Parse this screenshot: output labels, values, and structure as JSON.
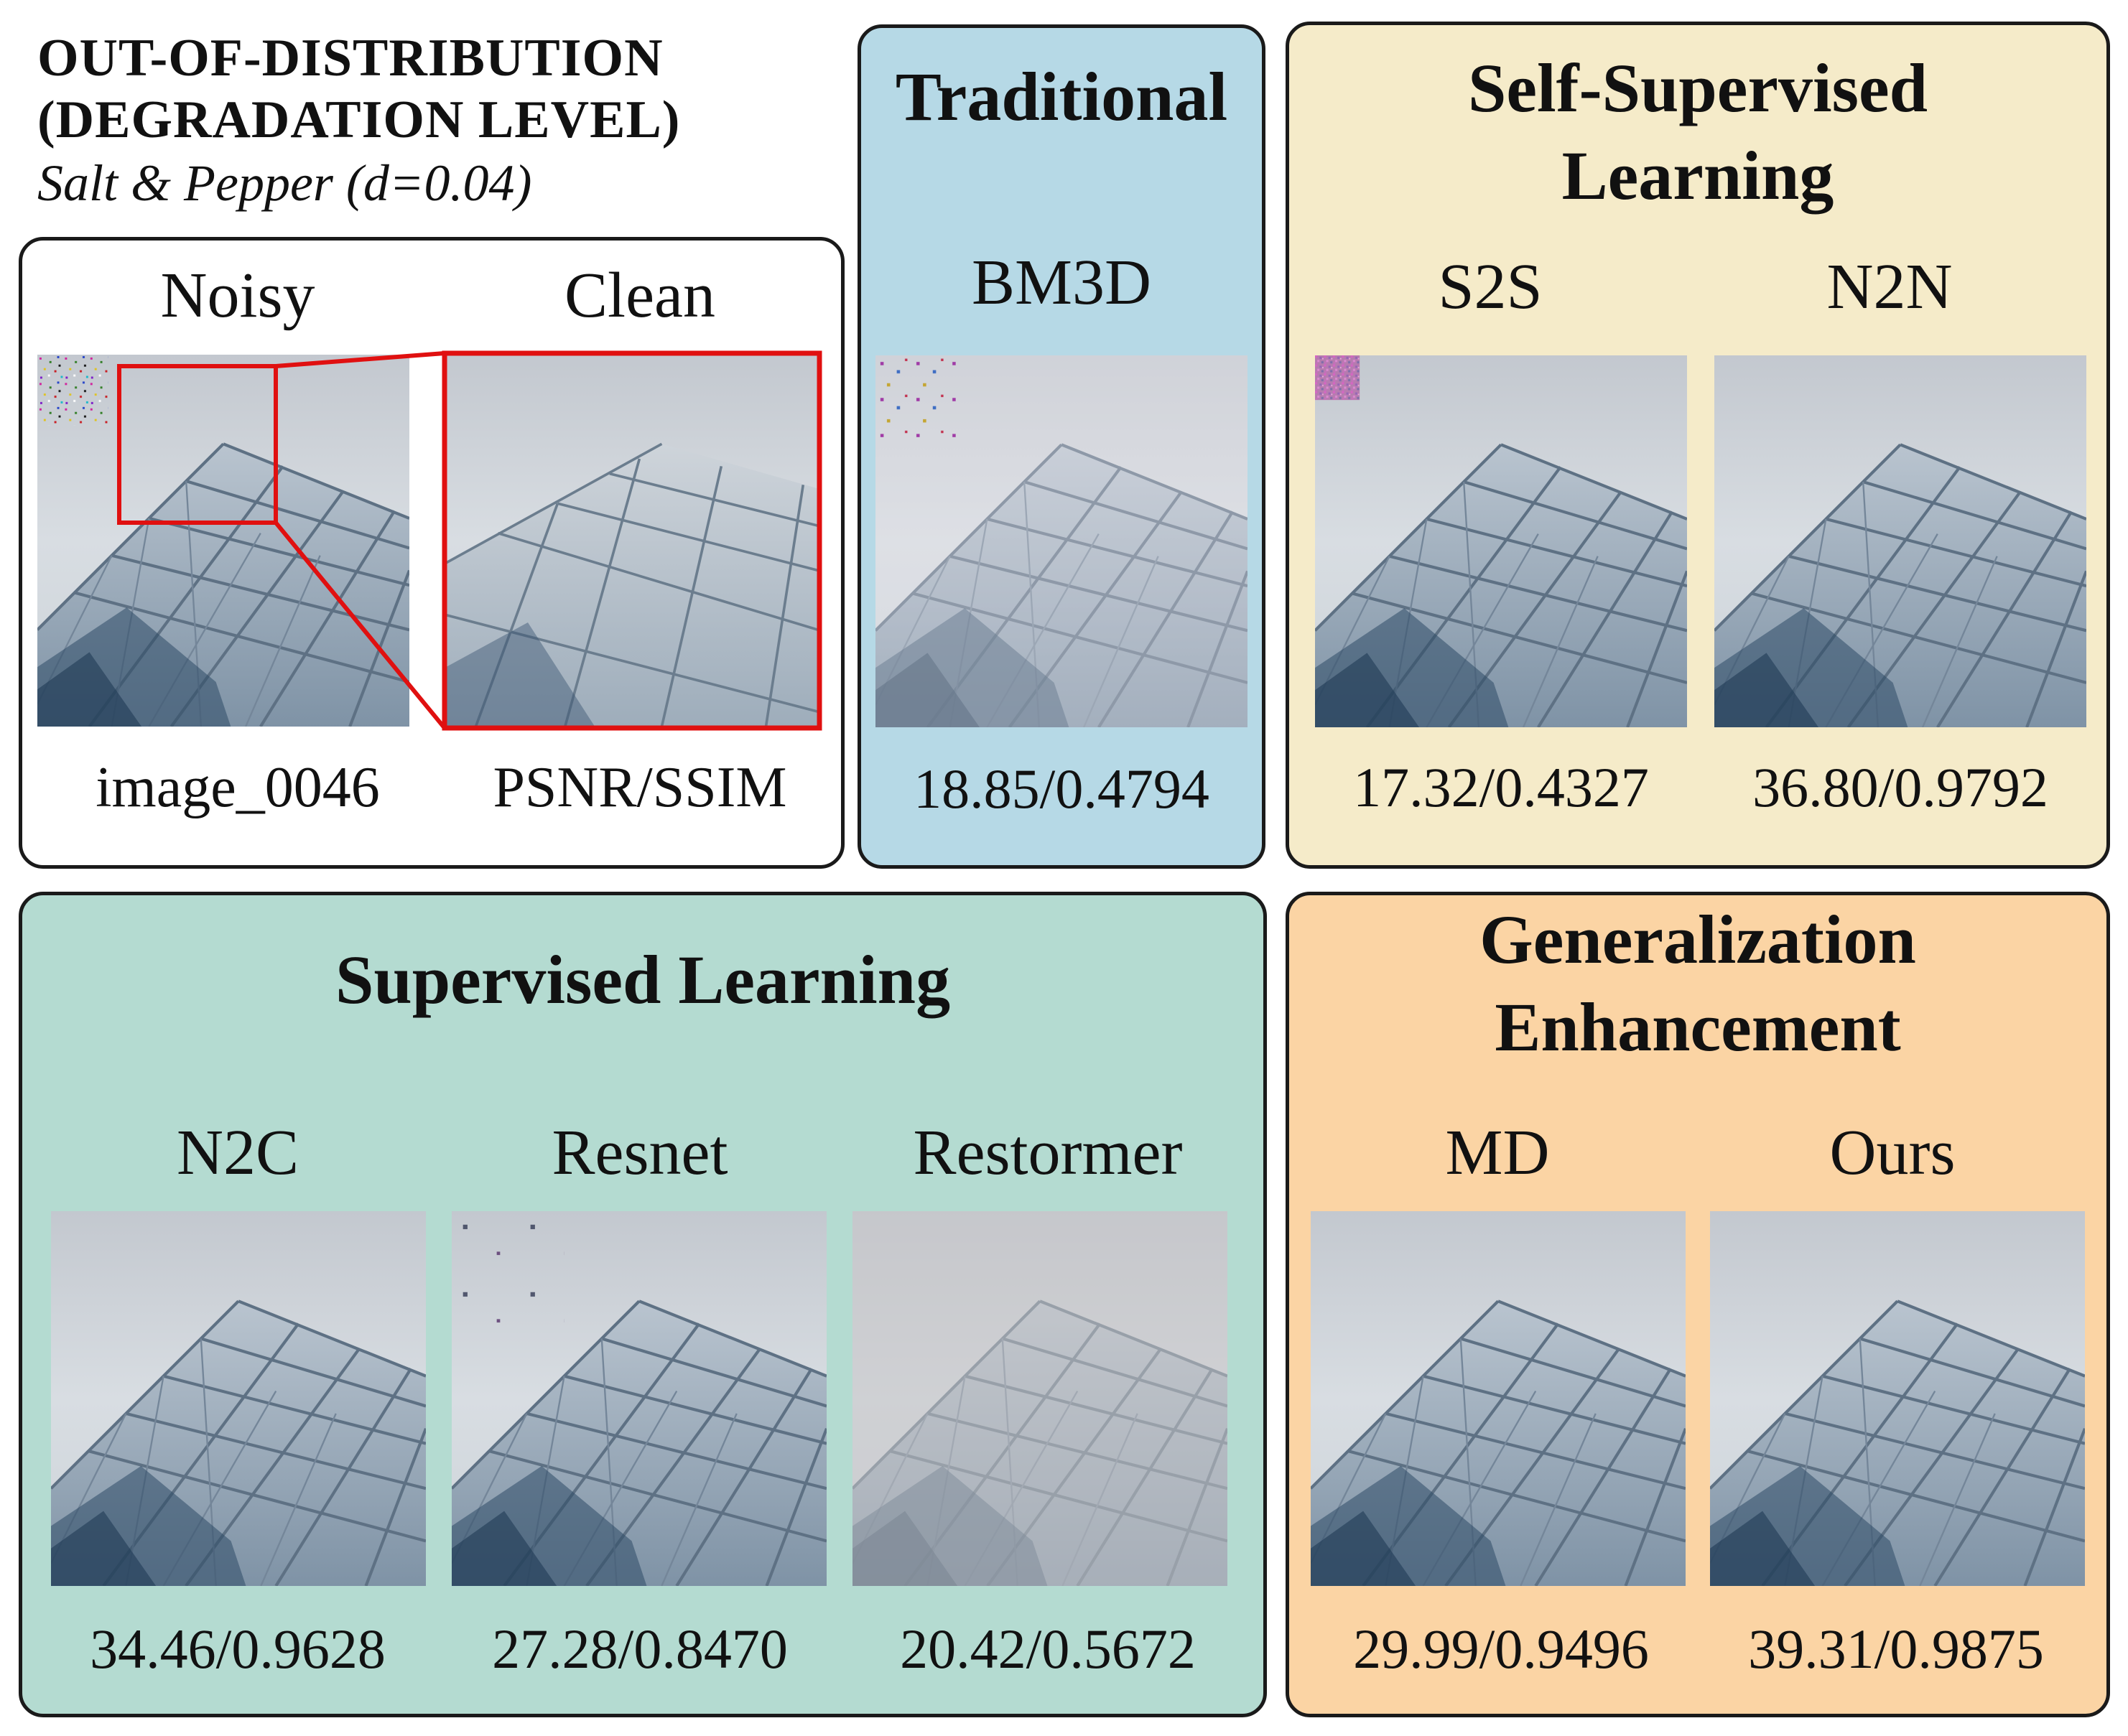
{
  "heading": {
    "line1": "OUT-OF-DISTRIBUTION",
    "line2": "(DEGRADATION LEVEL)",
    "subtitle": "Salt & Pepper (d=0.04)"
  },
  "ood_panel": {
    "items": [
      {
        "label": "Noisy",
        "caption": "image_0046"
      },
      {
        "label": "Clean",
        "caption": "PSNR/SSIM"
      }
    ]
  },
  "traditional": {
    "title": "Traditional",
    "items": [
      {
        "label": "BM3D",
        "metric": "18.85/0.4794"
      }
    ]
  },
  "self_supervised": {
    "title_line1": "Self-Supervised",
    "title_line2": "Learning",
    "items": [
      {
        "label": "S2S",
        "metric": "17.32/0.4327"
      },
      {
        "label": "N2N",
        "metric": "36.80/0.9792"
      }
    ]
  },
  "supervised": {
    "title": "Supervised Learning",
    "items": [
      {
        "label": "N2C",
        "metric": "34.46/0.9628"
      },
      {
        "label": "Resnet",
        "metric": "27.28/0.8470"
      },
      {
        "label": "Restormer",
        "metric": "20.42/0.5672"
      }
    ]
  },
  "generalization": {
    "title_line1": "Generalization",
    "title_line2": "Enhancement",
    "items": [
      {
        "label": "MD",
        "metric": "29.99/0.9496"
      },
      {
        "label": "Ours",
        "metric": "39.31/0.9875"
      }
    ]
  },
  "colors": {
    "traditional_bg": "#b6d9e6",
    "self_supervised_bg": "#f5ebc9",
    "supervised_bg": "#b4dbd1",
    "generalization_bg": "#fbd4a4",
    "zoom_box": "#e01010"
  }
}
